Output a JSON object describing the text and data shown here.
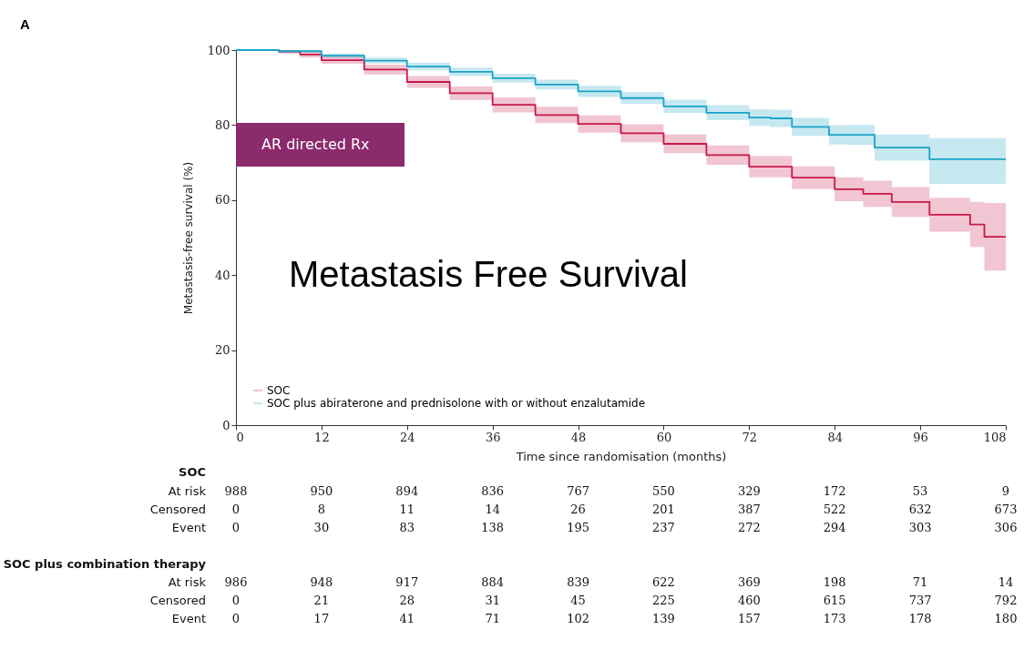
{
  "chart_data": {
    "type": "step",
    "title": "Metastasis Free Survival",
    "xlabel": "Time since randomisation (months)",
    "ylabel": "Metastasis-free survival (%)",
    "xlim": [
      0,
      108
    ],
    "xticks": [
      0,
      12,
      24,
      36,
      48,
      60,
      72,
      84,
      96,
      108
    ],
    "ylim": [
      0,
      100
    ],
    "yticks": [
      0,
      20,
      40,
      60,
      80,
      100
    ],
    "grid": false,
    "legend": "bottom left",
    "series": [
      {
        "name": "SOC",
        "color": "#c8184a",
        "x": [
          0,
          6,
          9,
          12,
          18,
          24,
          30,
          36,
          42,
          48,
          54,
          60,
          66,
          72,
          78,
          84,
          88,
          92,
          97.3,
          103,
          105,
          108
        ],
        "values": [
          100,
          99.6,
          98.8,
          97.3,
          94.8,
          91.5,
          88.5,
          85.4,
          82.7,
          80.3,
          77.8,
          75,
          72,
          68.9,
          66,
          62.9,
          61.7,
          59.5,
          56.1,
          53.5,
          50.2,
          50.2
        ],
        "lower": [
          100,
          99.1,
          98,
          96.3,
          93.5,
          89.9,
          86.7,
          83.4,
          80.5,
          78,
          75.4,
          72.5,
          69.4,
          66.1,
          63,
          59.7,
          58.2,
          55.5,
          51.6,
          47.5,
          41.2,
          41.2
        ],
        "upper": [
          100,
          100,
          99.6,
          98.3,
          96.1,
          93.1,
          90.3,
          87.4,
          84.9,
          82.6,
          80.2,
          77.5,
          74.6,
          71.7,
          69,
          66.1,
          65.2,
          63.5,
          60.6,
          59.5,
          59.2,
          59.2
        ]
      },
      {
        "name": "SOC plus abiraterone and prednisolone with or without enzalutamide",
        "color": "#1ba3c6",
        "x": [
          0,
          6,
          12,
          18,
          24,
          30,
          36,
          42,
          48,
          54,
          60,
          66,
          72,
          75,
          78,
          83.2,
          86,
          89.6,
          97.3,
          108
        ],
        "values": [
          100,
          99.7,
          98.5,
          97.2,
          95.6,
          94.2,
          92.5,
          90.8,
          89,
          87.2,
          85,
          83.3,
          82,
          81.8,
          79.5,
          77.4,
          77.4,
          74,
          70.9,
          70.9
        ],
        "lower": [
          100,
          99.4,
          97.9,
          96.4,
          94.6,
          93.1,
          91.3,
          89.5,
          87.5,
          85.6,
          83.2,
          81.3,
          79.8,
          79.5,
          77.1,
          74.8,
          74.7,
          70.5,
          64.3,
          64.3
        ],
        "upper": [
          100,
          100,
          99.1,
          98,
          96.6,
          95.3,
          93.7,
          92.1,
          90.5,
          88.8,
          86.8,
          85.3,
          84.2,
          84.1,
          81.9,
          80,
          80.1,
          77.5,
          76.5,
          76.5
        ]
      }
    ],
    "annotations": [
      "A",
      "AR directed Rx",
      "SOC",
      "At risk",
      "988",
      "950",
      "894",
      "836",
      "767",
      "550",
      "329",
      "172",
      "53",
      "9",
      "Censored",
      "0",
      "8",
      "11",
      "14",
      "26",
      "201",
      "387",
      "522",
      "632",
      "673",
      "Event",
      "0",
      "30",
      "83",
      "138",
      "195",
      "237",
      "272",
      "294",
      "303",
      "306",
      "SOC plus combination therapy",
      "At risk",
      "986",
      "948",
      "917",
      "884",
      "839",
      "622",
      "369",
      "198",
      "71",
      "14",
      "Censored",
      "0",
      "21",
      "28",
      "31",
      "45",
      "225",
      "460",
      "615",
      "737",
      "792",
      "Event",
      "0",
      "17",
      "41",
      "71",
      "102",
      "139",
      "157",
      "173",
      "178",
      "180"
    ]
  }
}
